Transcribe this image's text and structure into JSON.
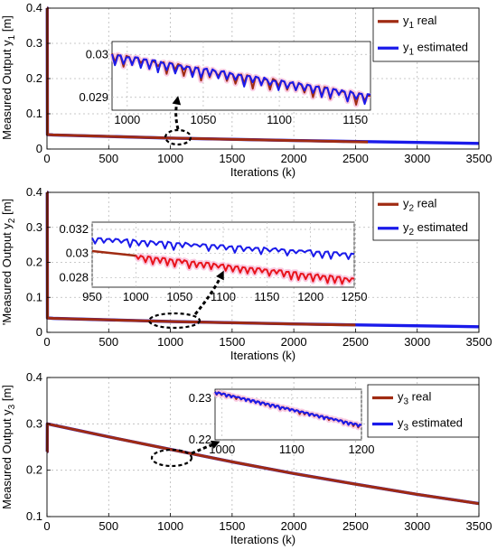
{
  "colors": {
    "real": "#a02b12",
    "real_bright": "#e8141c",
    "estimated": "#1a1aea",
    "halo": "#f7bedb",
    "grid": "#b8b8b8",
    "arrow": "#000000"
  },
  "chart_data": [
    {
      "type": "line",
      "ylabel": {
        "main": "Measured Output y",
        "sub": "1",
        "unit": " [m]"
      },
      "xlabel": "Iterations (k)",
      "xlim": [
        0,
        3500
      ],
      "ylim": [
        0,
        0.4
      ],
      "xticks": [
        "0",
        "500",
        "1000",
        "1500",
        "2000",
        "2500",
        "3000",
        "3500"
      ],
      "yticks": [
        "0",
        "0.1",
        "0.2",
        "0.3",
        "0.4"
      ],
      "grid": true,
      "legend_position": "top-right",
      "series": [
        {
          "key": "real",
          "legend": {
            "base": "y",
            "sub": "1",
            "suffix": " real"
          },
          "points": [
            [
              0,
              0.4
            ],
            [
              2,
              0.4
            ],
            [
              4,
              0.041
            ],
            [
              50,
              0.04
            ],
            [
              1000,
              0.031
            ],
            [
              2000,
              0.024
            ],
            [
              2600,
              0.02
            ]
          ]
        },
        {
          "key": "estimated",
          "legend": {
            "base": "y",
            "sub": "1",
            "suffix": " estimated"
          },
          "points": [
            [
              0,
              0.4
            ],
            [
              2,
              0.4
            ],
            [
              4,
              0.041
            ],
            [
              50,
              0.04
            ],
            [
              1000,
              0.031
            ],
            [
              2000,
              0.024
            ],
            [
              3500,
              0.016
            ]
          ]
        }
      ],
      "inset": {
        "xlim": [
          990,
          1160
        ],
        "ylim": [
          0.0287,
          0.0303
        ],
        "xticks": [
          "1000",
          "1050",
          "1100",
          "1150"
        ],
        "yticks": [
          "0.029",
          "0.03"
        ],
        "real": {
          "start": 0.03,
          "end": 0.02905,
          "amp": 0.00018
        },
        "estimated": {
          "start": 0.03,
          "end": 0.02905,
          "amp": 0.00017
        }
      }
    },
    {
      "type": "line",
      "ylabel": {
        "main": "'Measured Output y",
        "sub": "2",
        "unit": " [m]"
      },
      "xlabel": "Iterations (k)",
      "xlim": [
        0,
        3500
      ],
      "ylim": [
        0,
        0.4
      ],
      "xticks": [
        "0",
        "500",
        "1000",
        "1500",
        "2000",
        "2500",
        "3000",
        "3500"
      ],
      "yticks": [
        "0",
        "0.1",
        "0.2",
        "0.3",
        "0.4"
      ],
      "grid": true,
      "legend_position": "top-right",
      "series": [
        {
          "key": "real",
          "legend": {
            "base": "y",
            "sub": "2",
            "suffix": " real"
          },
          "points": [
            [
              0,
              0.4
            ],
            [
              2,
              0.4
            ],
            [
              4,
              0.041
            ],
            [
              50,
              0.04
            ],
            [
              1000,
              0.031
            ],
            [
              2000,
              0.024
            ],
            [
              2500,
              0.021
            ]
          ]
        },
        {
          "key": "estimated",
          "legend": {
            "base": "y",
            "sub": "2",
            "suffix": " estimated"
          },
          "points": [
            [
              0,
              0.4
            ],
            [
              2,
              0.4
            ],
            [
              4,
              0.041
            ],
            [
              50,
              0.04
            ],
            [
              1000,
              0.031
            ],
            [
              2000,
              0.024
            ],
            [
              3500,
              0.016
            ]
          ]
        }
      ],
      "inset": {
        "xlim": [
          950,
          1250
        ],
        "ylim": [
          0.0272,
          0.0326
        ],
        "xticks": [
          "950",
          "1000",
          "1050",
          "1100",
          "1150",
          "1200",
          "1250"
        ],
        "yticks": [
          "0.028",
          "0.03",
          "0.032"
        ],
        "real": {
          "start": 0.0302,
          "end": 0.0279,
          "amp": 0.0004,
          "from": 1000
        },
        "estimated": {
          "start": 0.0313,
          "end": 0.03,
          "amp": 0.0004
        }
      }
    },
    {
      "type": "line",
      "ylabel": {
        "main": "Measured Output y",
        "sub": "3",
        "unit": " [m]"
      },
      "xlabel": "Iterations (k)",
      "xlim": [
        0,
        3500
      ],
      "ylim": [
        0.1,
        0.4
      ],
      "xticks": [
        "0",
        "500",
        "1000",
        "1500",
        "2000",
        "2500",
        "3000",
        "3500"
      ],
      "yticks": [
        "0.1",
        "0.2",
        "0.3",
        "0.4"
      ],
      "grid": true,
      "legend_position": "top-right",
      "series": [
        {
          "key": "real",
          "legend": {
            "base": "y",
            "sub": "3",
            "suffix": " real"
          },
          "points": [
            [
              0,
              0.24
            ],
            [
              2,
              0.24
            ],
            [
              3,
              0.3
            ],
            [
              500,
              0.272
            ],
            [
              1000,
              0.245
            ],
            [
              1500,
              0.218
            ],
            [
              2000,
              0.193
            ],
            [
              2500,
              0.17
            ],
            [
              3000,
              0.148
            ],
            [
              3500,
              0.128
            ]
          ]
        },
        {
          "key": "estimated",
          "legend": {
            "base": "y",
            "sub": "3",
            "suffix": " estimated"
          },
          "points": [
            [
              0,
              0.24
            ],
            [
              2,
              0.24
            ],
            [
              3,
              0.3
            ],
            [
              500,
              0.272
            ],
            [
              1000,
              0.245
            ],
            [
              1500,
              0.218
            ],
            [
              2000,
              0.193
            ],
            [
              2500,
              0.17
            ],
            [
              3000,
              0.148
            ],
            [
              3500,
              0.128
            ]
          ]
        }
      ],
      "inset": {
        "xlim": [
          990,
          1200
        ],
        "ylim": [
          0.2215,
          0.2318
        ],
        "xticks": [
          "1000",
          "1100",
          "1200"
        ],
        "yticks": [
          "0.23"
        ],
        "partial_ytick": "0.22",
        "real": {
          "start": 0.2313,
          "end": 0.2245,
          "amp": 0.0004
        },
        "estimated": {
          "start": 0.2313,
          "end": 0.2245,
          "amp": 0.0004
        }
      }
    }
  ]
}
